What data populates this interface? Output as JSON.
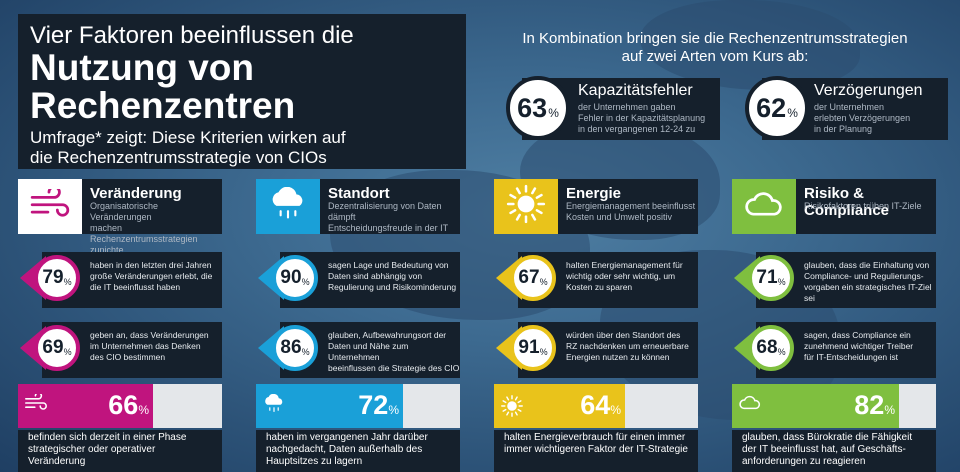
{
  "title": {
    "line1": "Vier Faktoren beeinflussen die",
    "line2": "Nutzung von",
    "line3": "Rechenzentren",
    "sub1": "Umfrage* zeigt: Diese Kriterien wirken auf",
    "sub2": "die Rechenzentrumsstrategie von CIOs"
  },
  "right_header": {
    "line1": "In Kombination bringen sie die Rechenzentrumsstrategien",
    "line2": "auf zwei Arten vom Kurs ab:"
  },
  "top_stats": [
    {
      "value": "63",
      "unit": "%",
      "title": "Kapazitätsfehler",
      "desc1": "der Unternehmen gaben",
      "desc2": "Fehler in der Kapazitätsplanung",
      "desc3": "in den vergangenen 12-24 zu"
    },
    {
      "value": "62",
      "unit": "%",
      "title": "Verzögerungen",
      "desc1": "der Unternehmen",
      "desc2": "erlebten Verzögerungen",
      "desc3": "in der Planung"
    }
  ],
  "categories": [
    {
      "title": "Veränderung",
      "icon": "wind-icon",
      "color": "#c0147e",
      "desc1": "Organisatorische Veränderungen",
      "desc2": "machen Rechenzentrumsstrategien",
      "desc3": "zunichte",
      "stat1": {
        "value": "79",
        "unit": "%",
        "l1": "haben in den letzten drei Jahren",
        "l2": "große Veränderungen erlebt, die",
        "l3": "die IT beeinflusst haben"
      },
      "stat2": {
        "value": "69",
        "unit": "%",
        "l1": "geben an, dass Veränderungen",
        "l2": "im Unternehmen das Denken",
        "l3": "des CIO bestimmen"
      },
      "bar": {
        "value": 66,
        "label": "66",
        "unit": "%"
      },
      "bottom1": "befinden sich derzeit in einer Phase",
      "bottom2": "strategischer oder operativer Veränderung",
      "bottom3": ""
    },
    {
      "title": "Standort",
      "icon": "rain-cloud-icon",
      "color": "#1aa0d8",
      "desc1": "Dezentralisierung von Daten dämpft",
      "desc2": "Entscheidungsfreude in der IT",
      "desc3": "",
      "stat1": {
        "value": "90",
        "unit": "%",
        "l1": "sagen Lage und Bedeutung von",
        "l2": "Daten sind abhängig von",
        "l3": "Regulierung und Risikominderung"
      },
      "stat2": {
        "value": "86",
        "unit": "%",
        "l1": "glauben, Aufbewahrungsort der",
        "l2": "Daten und Nähe zum Unternehmen",
        "l3": "beeinflussen die Strategie des CIO"
      },
      "bar": {
        "value": 72,
        "label": "72",
        "unit": "%"
      },
      "bottom1": "haben im vergangenen Jahr darüber",
      "bottom2": "nachgedacht, Daten außerhalb des",
      "bottom3": "Hauptsitzes zu lagern"
    },
    {
      "title": "Energie",
      "icon": "sun-icon",
      "color": "#e9c31b",
      "desc1": "Energiemanagement beeinflusst",
      "desc2": "Kosten und Umwelt positiv",
      "desc3": "",
      "stat1": {
        "value": "67",
        "unit": "%",
        "l1": "halten Energiemanagement für",
        "l2": "wichtig oder sehr wichtig, um",
        "l3": "Kosten zu sparen"
      },
      "stat2": {
        "value": "91",
        "unit": "%",
        "l1": "würden über den Standort des",
        "l2": "RZ nachdenken um erneuerbare",
        "l3": "Energien nutzen zu können"
      },
      "bar": {
        "value": 64,
        "label": "64",
        "unit": "%"
      },
      "bottom1": "halten Energieverbrauch für einen immer",
      "bottom2": "immer wichtigeren Faktor der IT-Strategie",
      "bottom3": ""
    },
    {
      "title": "Risiko & Compliance",
      "icon": "cloud-icon",
      "color": "#7fbf3f",
      "desc1": "Risikofaktoren trüben IT-Ziele",
      "desc2": "",
      "desc3": "",
      "stat1": {
        "value": "71",
        "unit": "%",
        "l1": "glauben, dass die Einhaltung von",
        "l2": "Compliance- und Regulierungs-",
        "l3": "vorgaben ein strategisches IT-Ziel sei"
      },
      "stat2": {
        "value": "68",
        "unit": "%",
        "l1": "sagen, dass Compliance ein",
        "l2": "zunehmend wichtiger Treiber",
        "l3": "für IT-Entscheidungen ist"
      },
      "bar": {
        "value": 82,
        "label": "82",
        "unit": "%"
      },
      "bottom1": "glauben, dass Bürokratie die Fähigkeit",
      "bottom2": "der IT beeinflusst hat, auf Geschäfts-",
      "bottom3": "anforderungen zu reagieren"
    }
  ]
}
